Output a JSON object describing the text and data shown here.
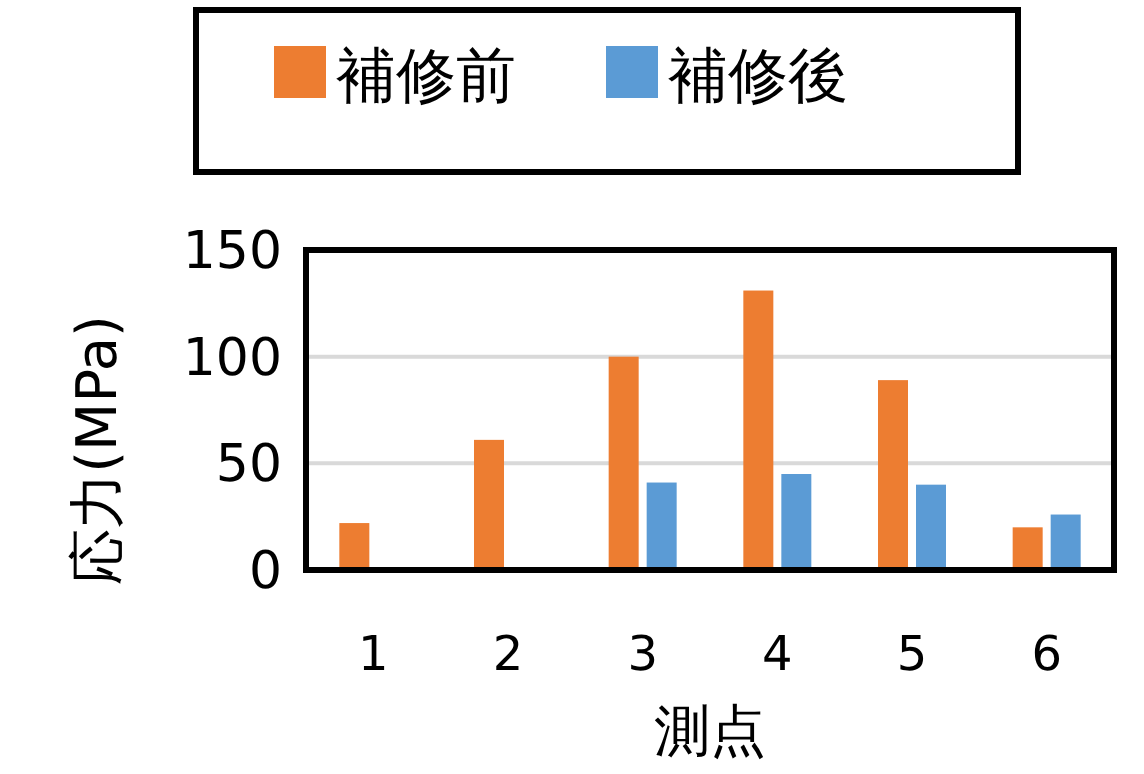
{
  "chart_data": {
    "type": "bar",
    "xlabel": "測点",
    "ylabel": "応力(MPa)",
    "categories": [
      "1",
      "2",
      "3",
      "4",
      "5",
      "6"
    ],
    "series": [
      {
        "name": "補修前",
        "color": "#ed7d31",
        "values": [
          22,
          61,
          100,
          131,
          89,
          20
        ]
      },
      {
        "name": "補修後",
        "color": "#5b9bd5",
        "values": [
          null,
          null,
          41,
          45,
          40,
          26
        ]
      }
    ],
    "ylim": [
      0,
      150
    ],
    "yticks": [
      0,
      50,
      100,
      150
    ],
    "grid": "y",
    "legend": "top"
  }
}
